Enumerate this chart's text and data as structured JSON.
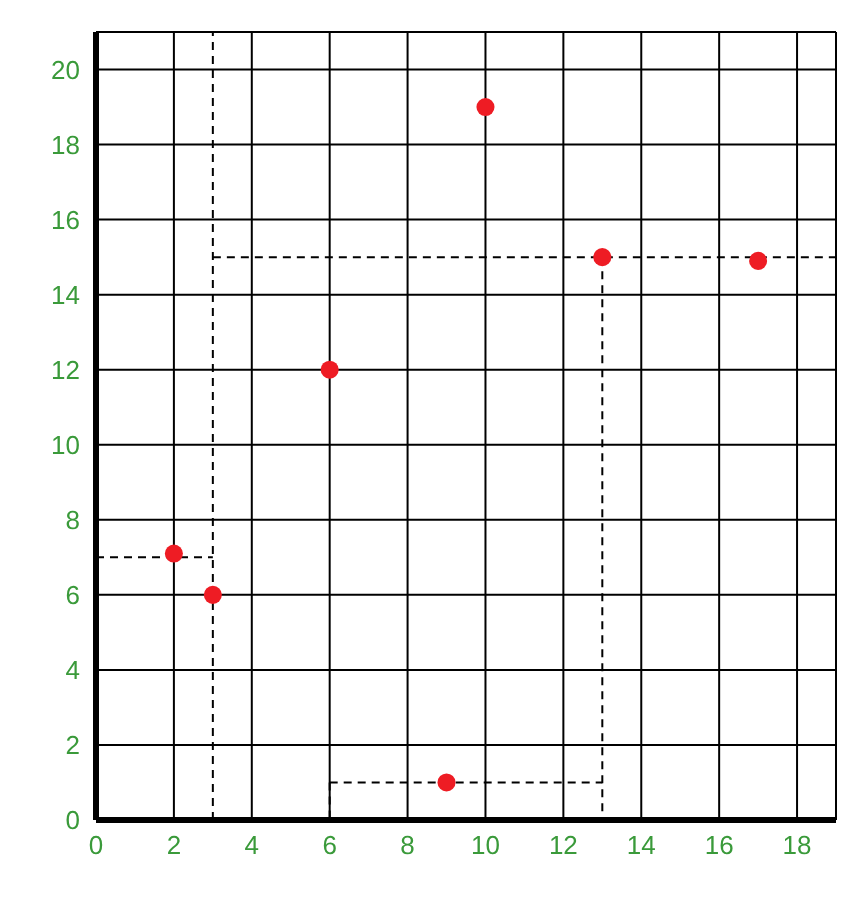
{
  "chart_data": {
    "type": "scatter",
    "series": [
      {
        "color": "#ee1c24",
        "x": [
          2,
          3,
          6,
          9,
          10,
          13,
          17
        ],
        "values": [
          7.1,
          6,
          12,
          1,
          19,
          15,
          14.9
        ],
        "marker": "circle"
      },
      {
        "type": "line",
        "color": "#000000",
        "line_style": "dashed",
        "marker": "none",
        "x": [
          0,
          3
        ],
        "values": [
          7,
          7
        ]
      },
      {
        "type": "line",
        "color": "#000000",
        "line_style": "dashed",
        "marker": "none",
        "x": [
          3,
          19
        ],
        "values": [
          15,
          15
        ]
      },
      {
        "type": "line",
        "color": "#000000",
        "line_style": "dashed",
        "marker": "none",
        "x": [
          13,
          13
        ],
        "values": [
          15,
          0
        ]
      },
      {
        "type": "line",
        "color": "#000000",
        "line_style": "dashed",
        "marker": "none",
        "x": [
          6,
          13
        ],
        "values": [
          1,
          1
        ]
      },
      {
        "type": "line",
        "color": "#000000",
        "line_style": "dashed",
        "marker": "none",
        "x": [
          6,
          6
        ],
        "values": [
          1,
          0
        ]
      }
    ],
    "ref_lines": [
      {
        "axis": "x",
        "value": 3,
        "color": "#000000",
        "line_style": "dashed"
      }
    ],
    "xlim": [
      0,
      19
    ],
    "ylim": [
      0,
      21
    ],
    "xticks": [
      0,
      2,
      4,
      6,
      8,
      10,
      12,
      14,
      16,
      18
    ],
    "yticks": [
      0,
      2,
      4,
      6,
      8,
      10,
      12,
      14,
      16,
      18,
      20
    ],
    "grid": true
  }
}
